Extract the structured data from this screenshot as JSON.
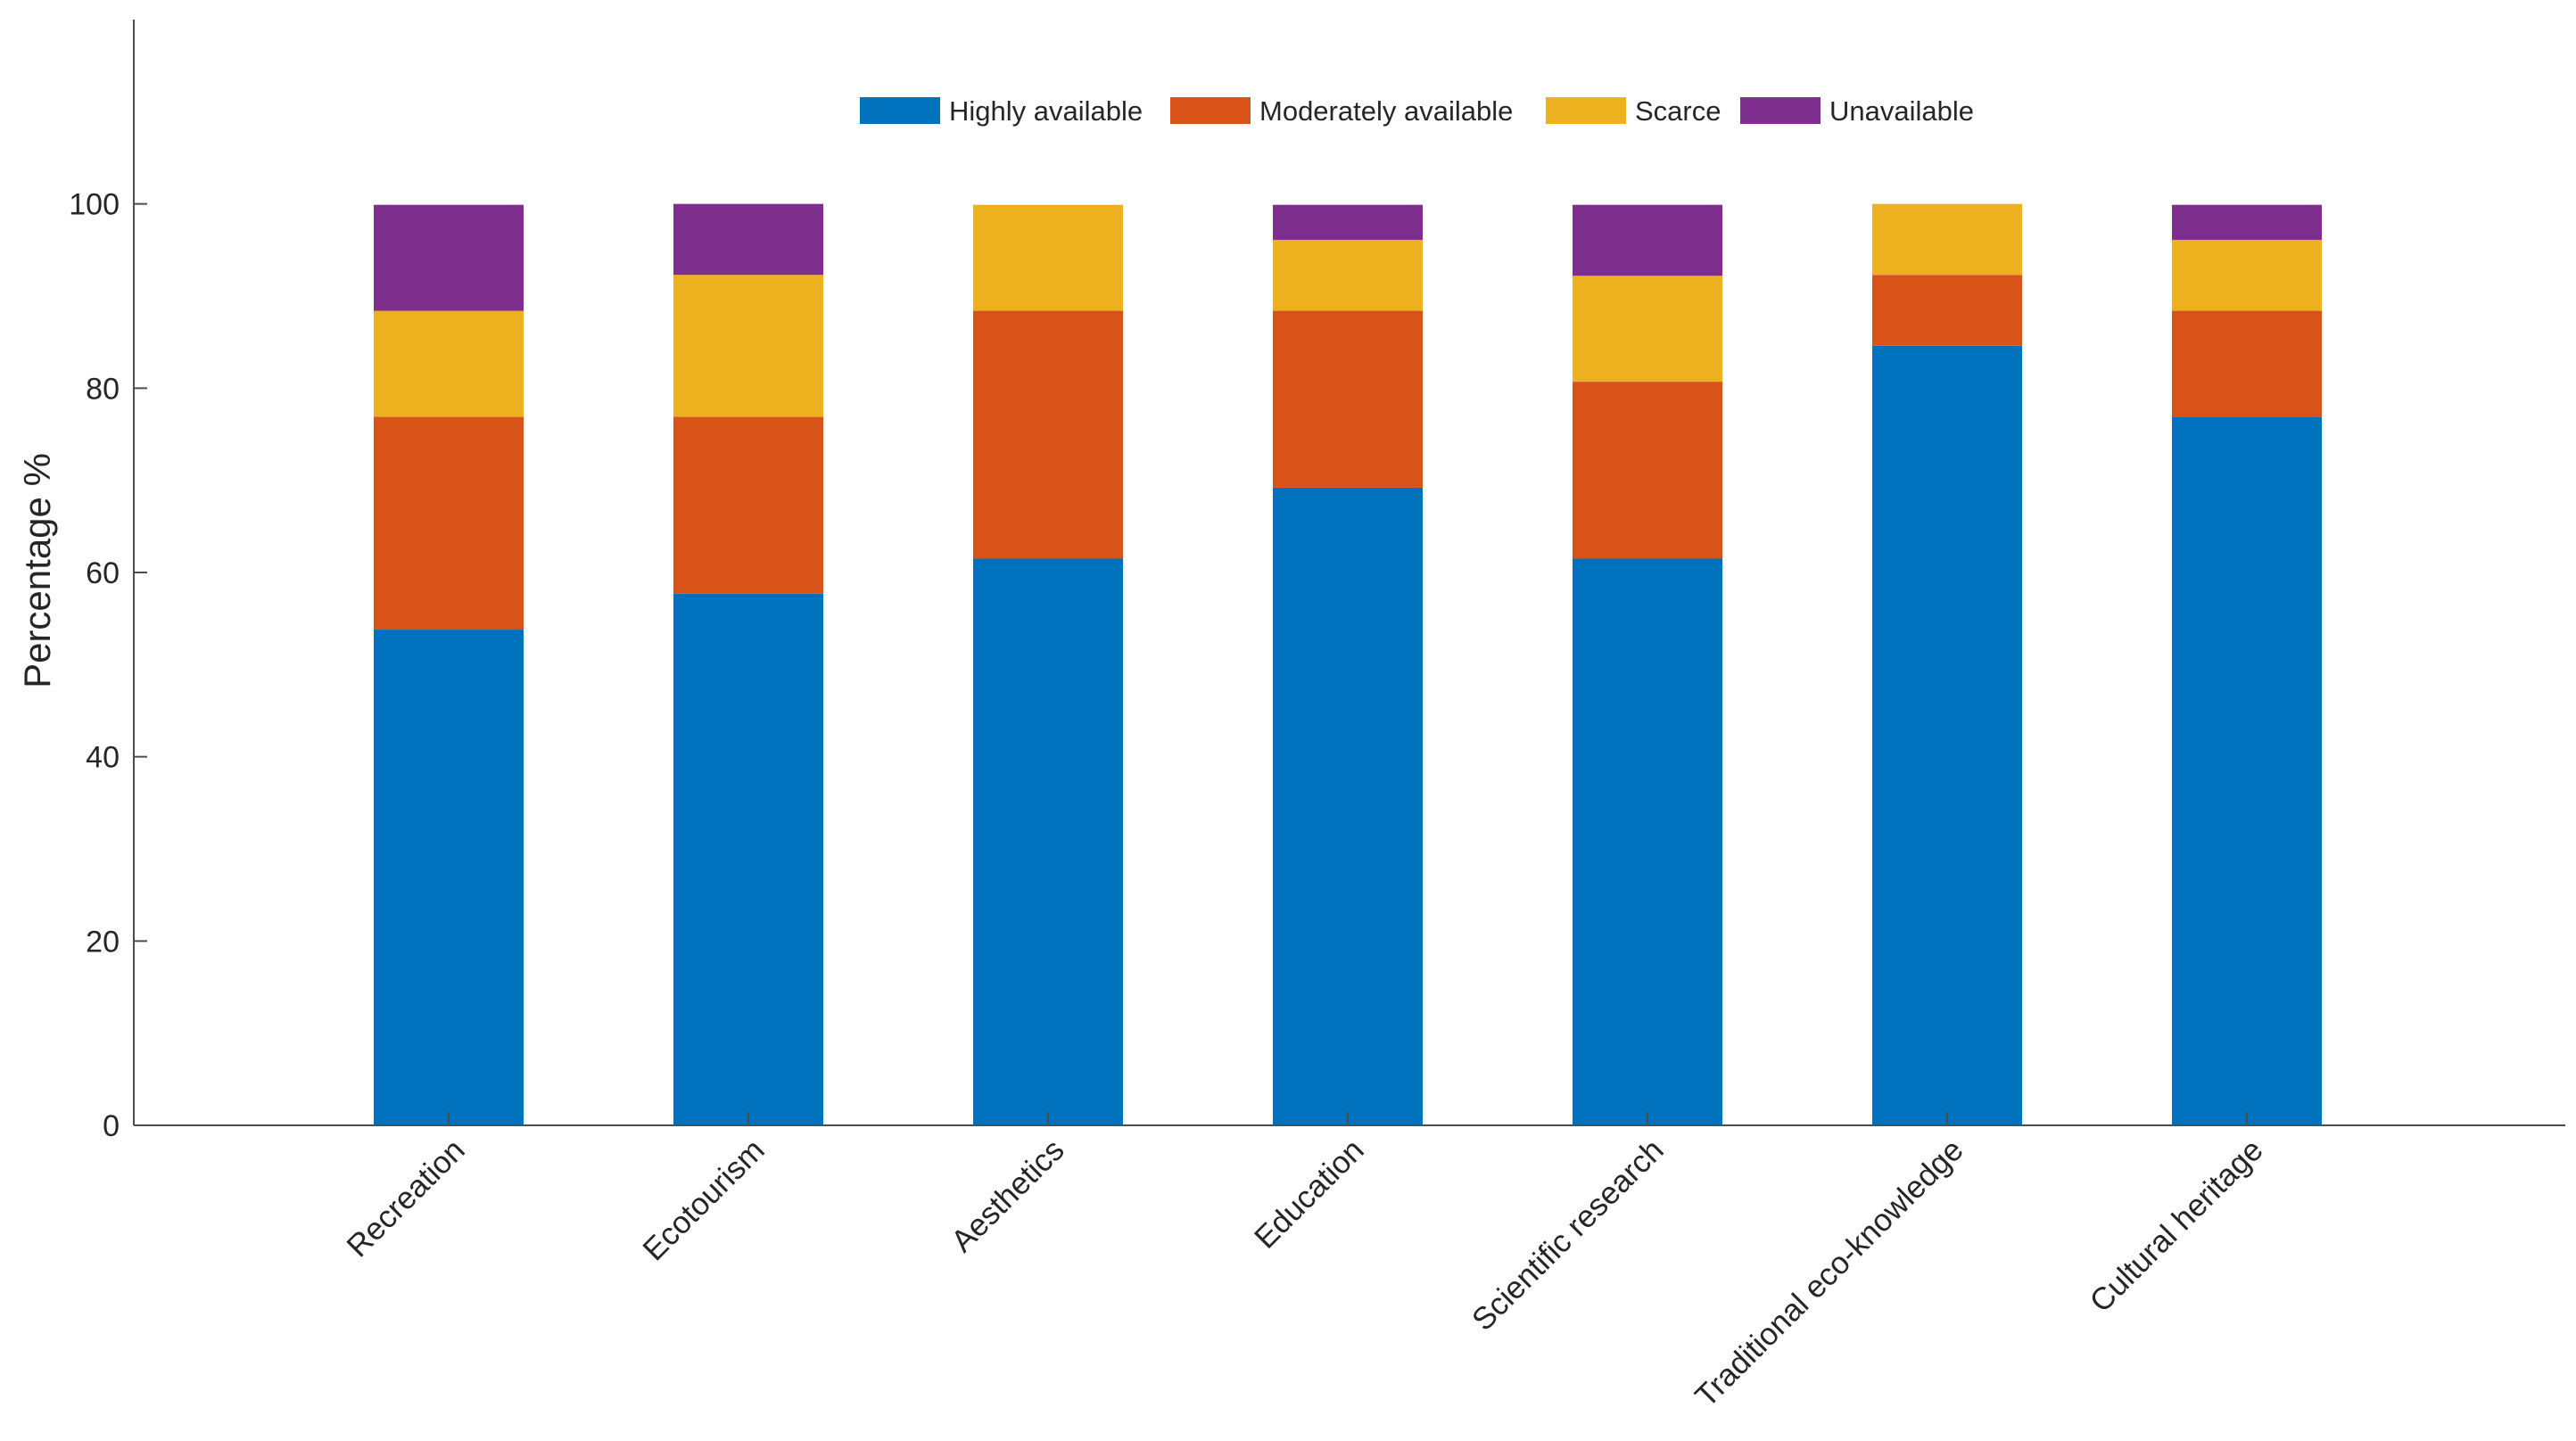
{
  "chart_data": {
    "type": "bar",
    "stacked": true,
    "title": "",
    "xlabel": "",
    "ylabel": "Percentage  %",
    "ylim": [
      0,
      120
    ],
    "yticks": [
      0,
      20,
      40,
      60,
      80,
      100
    ],
    "grid": false,
    "legend_position": "top-center",
    "categories": [
      "Recreation",
      "Ecotourism",
      "Aesthetics",
      "Education",
      "Scientific research",
      "Traditional eco-knowledge",
      "Cultural heritage"
    ],
    "series": [
      {
        "name": "Highly available",
        "color": "#0072BD",
        "values": [
          53.8,
          57.7,
          61.5,
          69.2,
          61.5,
          84.6,
          76.9
        ]
      },
      {
        "name": "Moderately available",
        "color": "#D95319",
        "values": [
          23.1,
          19.2,
          26.9,
          19.2,
          19.2,
          7.7,
          11.5
        ]
      },
      {
        "name": "Scarce",
        "color": "#EDB120",
        "values": [
          11.5,
          15.4,
          11.5,
          7.7,
          11.5,
          7.7,
          7.7
        ]
      },
      {
        "name": "Unavailable",
        "color": "#7E2F8E",
        "values": [
          11.5,
          7.7,
          0,
          3.8,
          7.7,
          0,
          3.8
        ]
      }
    ]
  }
}
